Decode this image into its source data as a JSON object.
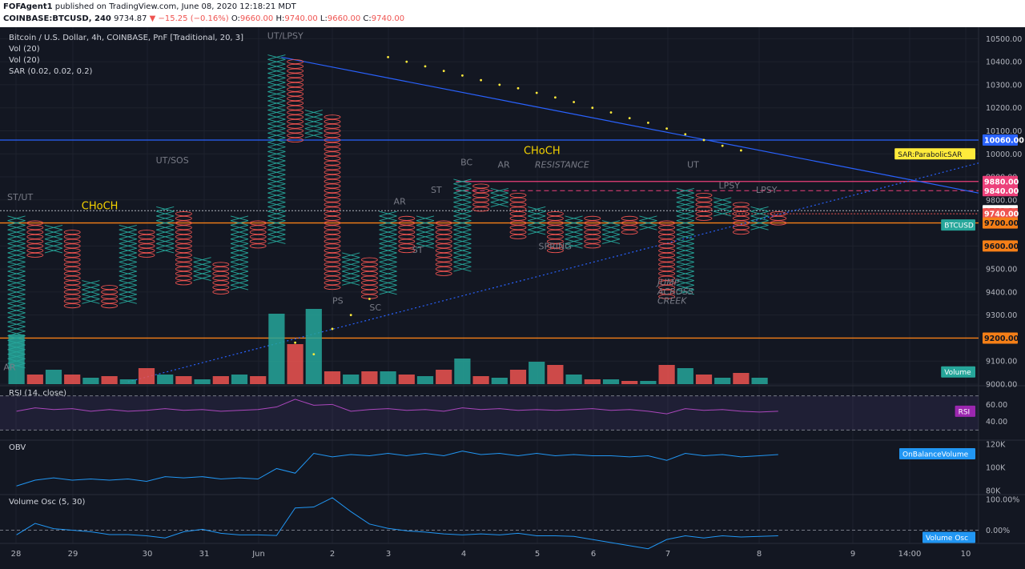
{
  "header": {
    "author": "FOFAgent1",
    "published": "published on TradingView.com, June 08, 2020 12:18:21 MDT",
    "symbol": "COINBASE:BTCUSD, 240",
    "last": "9734.87",
    "change": "−15.25 (−0.16%)",
    "o_label": "O:",
    "o": "9660.00",
    "h_label": "H:",
    "h": "9740.00",
    "l_label": "L:",
    "l": "9660.00",
    "c_label": "C:",
    "c": "9740.00"
  },
  "legend": {
    "title": "Bitcoin / U.S. Dollar, 4h, COINBASE, PnF [Traditional, 20, 3]",
    "vol1": "Vol (20)",
    "vol2": "Vol (20)",
    "sar": "SAR (0.02, 0.02, 0.2)"
  },
  "colors": {
    "background": "#131722",
    "x_box": "#26a69a",
    "o_box": "#ef5350",
    "trend_line": "#2962ff",
    "support": "#f57f17",
    "resistance": "#ec407a",
    "sar_dots": "#ffeb3b",
    "rsi": "#ab47bc",
    "obv": "#2196f3",
    "annotation": "#f5d300"
  },
  "chart_data": [
    {
      "type": "pnf",
      "title": "Bitcoin / U.S. Dollar, 4h, COINBASE, PnF [Traditional, 20, 3]",
      "box_size": 20,
      "reversal": 3,
      "ylim": [
        9000,
        10550
      ],
      "y_ticks": [
        "9000.00",
        "9100.00",
        "9200.00",
        "9300.00",
        "9400.00",
        "9500.00",
        "9600.00",
        "9700.00",
        "9800.00",
        "9900.00",
        "10000.00",
        "10100.00",
        "10200.00",
        "10300.00",
        "10400.00",
        "10500.00"
      ],
      "x_ticks": [
        "28",
        "29",
        "30",
        "31",
        "Jun",
        "2",
        "3",
        "4",
        "5",
        "6",
        "7",
        "8",
        "9",
        "14:00",
        "10"
      ],
      "columns": [
        {
          "t": "X",
          "lo": 9080,
          "hi": 9720
        },
        {
          "t": "O",
          "lo": 9560,
          "hi": 9700
        },
        {
          "t": "X",
          "lo": 9580,
          "hi": 9680
        },
        {
          "t": "O",
          "lo": 9340,
          "hi": 9660
        },
        {
          "t": "X",
          "lo": 9360,
          "hi": 9440
        },
        {
          "t": "O",
          "lo": 9340,
          "hi": 9420
        },
        {
          "t": "X",
          "lo": 9360,
          "hi": 9680
        },
        {
          "t": "O",
          "lo": 9560,
          "hi": 9660
        },
        {
          "t": "X",
          "lo": 9580,
          "hi": 9760
        },
        {
          "t": "O",
          "lo": 9440,
          "hi": 9740
        },
        {
          "t": "X",
          "lo": 9460,
          "hi": 9540
        },
        {
          "t": "O",
          "lo": 9400,
          "hi": 9520
        },
        {
          "t": "X",
          "lo": 9420,
          "hi": 9720
        },
        {
          "t": "O",
          "lo": 9600,
          "hi": 9700
        },
        {
          "t": "X",
          "lo": 9620,
          "hi": 10420
        },
        {
          "t": "O",
          "lo": 10060,
          "hi": 10400
        },
        {
          "t": "X",
          "lo": 10080,
          "hi": 10180
        },
        {
          "t": "O",
          "lo": 9420,
          "hi": 10160
        },
        {
          "t": "X",
          "lo": 9440,
          "hi": 9560
        },
        {
          "t": "O",
          "lo": 9380,
          "hi": 9540
        },
        {
          "t": "X",
          "lo": 9400,
          "hi": 9740
        },
        {
          "t": "O",
          "lo": 9580,
          "hi": 9720
        },
        {
          "t": "X",
          "lo": 9600,
          "hi": 9720
        },
        {
          "t": "O",
          "lo": 9480,
          "hi": 9700
        },
        {
          "t": "X",
          "lo": 9500,
          "hi": 9880
        },
        {
          "t": "O",
          "lo": 9760,
          "hi": 9860
        },
        {
          "t": "X",
          "lo": 9780,
          "hi": 9840
        },
        {
          "t": "O",
          "lo": 9640,
          "hi": 9820
        },
        {
          "t": "X",
          "lo": 9660,
          "hi": 9760
        },
        {
          "t": "O",
          "lo": 9580,
          "hi": 9740
        },
        {
          "t": "X",
          "lo": 9600,
          "hi": 9720
        },
        {
          "t": "O",
          "lo": 9600,
          "hi": 9720
        },
        {
          "t": "X",
          "lo": 9620,
          "hi": 9700
        },
        {
          "t": "O",
          "lo": 9660,
          "hi": 9720
        },
        {
          "t": "X",
          "lo": 9680,
          "hi": 9720
        },
        {
          "t": "O",
          "lo": 9380,
          "hi": 9700
        },
        {
          "t": "X",
          "lo": 9400,
          "hi": 9840
        },
        {
          "t": "O",
          "lo": 9720,
          "hi": 9820
        },
        {
          "t": "X",
          "lo": 9740,
          "hi": 9800
        },
        {
          "t": "O",
          "lo": 9660,
          "hi": 9780
        },
        {
          "t": "X",
          "lo": 9680,
          "hi": 9760
        },
        {
          "t": "O",
          "lo": 9700,
          "hi": 9740
        }
      ],
      "levels": [
        {
          "value": 10060,
          "label": "10060.00",
          "color": "#2962ff",
          "style": "solid"
        },
        {
          "value": 9880,
          "label": "9880.00",
          "color": "#ec407a",
          "style": "solid"
        },
        {
          "value": 9840,
          "label": "9840.00",
          "color": "#ec407a",
          "style": "dashed"
        },
        {
          "value": 9753.26,
          "label": "9753.26",
          "color": "#b2b5be",
          "style": "dotted"
        },
        {
          "value": 9740,
          "label": "9740.00",
          "color": "#ef5350",
          "style": "dotted"
        },
        {
          "value": 9700,
          "label": "9700.00",
          "color": "#f57f17",
          "style": "solid"
        },
        {
          "value": 9600,
          "label": "9600.00",
          "color": "#f57f17",
          "style": "none"
        },
        {
          "value": 9200,
          "label": "9200.00",
          "color": "#f57f17",
          "style": "solid"
        }
      ],
      "price_tags": [
        {
          "value": 9740,
          "label": "BTCUSD",
          "color": "#26a69a"
        },
        {
          "value": 10000,
          "label": "SAR:ParabolicSAR",
          "color": "#ffeb3b"
        },
        {
          "value": 9053,
          "label": "Volume",
          "color": "#26a69a"
        }
      ],
      "sar": [
        {
          "col": 20.5,
          "value": 10420
        },
        {
          "col": 21.5,
          "value": 10400
        },
        {
          "col": 22.5,
          "value": 10380
        },
        {
          "col": 23.5,
          "value": 10360
        },
        {
          "col": 24.5,
          "value": 10340
        },
        {
          "col": 25.5,
          "value": 10320
        },
        {
          "col": 26.5,
          "value": 10300
        },
        {
          "col": 27.5,
          "value": 10285
        },
        {
          "col": 28.5,
          "value": 10265
        },
        {
          "col": 29.5,
          "value": 10245
        },
        {
          "col": 30.5,
          "value": 10225
        },
        {
          "col": 31.5,
          "value": 10200
        },
        {
          "col": 32.5,
          "value": 10180
        },
        {
          "col": 33.5,
          "value": 10155
        },
        {
          "col": 34.5,
          "value": 10135
        },
        {
          "col": 35.5,
          "value": 10110
        },
        {
          "col": 36.5,
          "value": 10085
        },
        {
          "col": 37.5,
          "value": 10060
        },
        {
          "col": 38.5,
          "value": 10035
        },
        {
          "col": 39.5,
          "value": 10015
        },
        {
          "col": 17.5,
          "value": 9240
        },
        {
          "col": 18.5,
          "value": 9300
        },
        {
          "col": 19.5,
          "value": 9370
        },
        {
          "col": 15.5,
          "value": 9180
        },
        {
          "col": 16.5,
          "value": 9130
        }
      ],
      "volume": [
        0.31,
        0.06,
        0.09,
        0.06,
        0.04,
        0.05,
        0.03,
        0.1,
        0.06,
        0.05,
        0.03,
        0.05,
        0.06,
        0.05,
        0.44,
        0.25,
        0.47,
        0.08,
        0.06,
        0.08,
        0.08,
        0.06,
        0.05,
        0.09,
        0.16,
        0.05,
        0.04,
        0.09,
        0.14,
        0.12,
        0.06,
        0.03,
        0.03,
        0.02,
        0.02,
        0.12,
        0.1,
        0.06,
        0.04,
        0.07,
        0.04,
        0.0
      ],
      "annotations": [
        {
          "text": "ST/UT",
          "col": 0,
          "value": 9800,
          "color": "#787b86"
        },
        {
          "text": "CHoCH",
          "col": 4,
          "value": 9760,
          "color": "#f5d300"
        },
        {
          "text": "UT/SOS",
          "col": 8,
          "value": 9960,
          "color": "#787b86"
        },
        {
          "text": "UT/LPSY",
          "col": 14,
          "value": 10500,
          "color": "#787b86"
        },
        {
          "text": "PS",
          "col": 17.5,
          "value": 9350,
          "color": "#787b86"
        },
        {
          "text": "SC",
          "col": 19.5,
          "value": 9320,
          "color": "#787b86"
        },
        {
          "text": "AR",
          "col": 20.8,
          "value": 9780,
          "color": "#787b86"
        },
        {
          "text": "ST",
          "col": 22.8,
          "value": 9830,
          "color": "#787b86"
        },
        {
          "text": "ST",
          "col": 21.8,
          "value": 9570,
          "color": "#787b86"
        },
        {
          "text": "BC",
          "col": 24.4,
          "value": 9950,
          "color": "#787b86"
        },
        {
          "text": "CHoCH",
          "col": 27.8,
          "value": 10000,
          "color": "#f5d300"
        },
        {
          "text": "AR",
          "col": 26.4,
          "value": 9940,
          "color": "#787b86"
        },
        {
          "text": "RESISTANCE",
          "col": 28.4,
          "value": 9940,
          "color": "#787b86"
        },
        {
          "text": "SPRING",
          "col": 28.6,
          "value": 9585,
          "color": "#787b86"
        },
        {
          "text": "JUMP",
          "col": 35,
          "value": 9430,
          "color": "#787b86"
        },
        {
          "text": "ACROSS",
          "col": 35,
          "value": 9390,
          "color": "#787b86"
        },
        {
          "text": "CREEK",
          "col": 35,
          "value": 9350,
          "color": "#787b86"
        },
        {
          "text": "UT",
          "col": 36.6,
          "value": 9940,
          "color": "#787b86"
        },
        {
          "text": "LPSY",
          "col": 38.3,
          "value": 9850,
          "color": "#787b86"
        },
        {
          "text": "LPSY",
          "col": 40.3,
          "value": 9830,
          "color": "#787b86"
        },
        {
          "text": "AR",
          "col": -0.2,
          "value": 9060,
          "color": "#787b86"
        }
      ]
    },
    {
      "type": "line",
      "title": "RSI (14, close)",
      "ylim": [
        20,
        80
      ],
      "y_ticks": [
        "60.00",
        "40.00"
      ],
      "bands": [
        70,
        30
      ],
      "values": [
        52,
        56,
        54,
        55,
        52,
        54,
        52,
        53,
        55,
        53,
        54,
        52,
        53,
        54,
        57,
        66,
        59,
        60,
        52,
        54,
        55,
        53,
        54,
        52,
        56,
        54,
        55,
        53,
        54,
        53,
        54,
        55,
        53,
        54,
        52,
        49,
        55,
        53,
        54,
        52,
        51,
        52
      ],
      "tag": "RSI"
    },
    {
      "type": "line",
      "title": "OBV",
      "ylim": [
        78,
        122
      ],
      "y_ticks": [
        "120K",
        "100K",
        "80K"
      ],
      "values": [
        84,
        89,
        91,
        89,
        90,
        89,
        90,
        88,
        92,
        91,
        92,
        90,
        91,
        90,
        99,
        95,
        112,
        109,
        111,
        110,
        112,
        110,
        112,
        110,
        114,
        111,
        112,
        110,
        112,
        110,
        111,
        110,
        110,
        109,
        110,
        106,
        112,
        110,
        111,
        109,
        110,
        111
      ],
      "tag": "OnBalanceVolume"
    },
    {
      "type": "line",
      "title": "Volume Osc (5, 30)",
      "ylim": [
        -40,
        110
      ],
      "y_ticks": [
        "100.00%",
        "0.00%"
      ],
      "values": [
        -15,
        22,
        5,
        0,
        -5,
        -14,
        -14,
        -18,
        -25,
        -5,
        3,
        -10,
        -15,
        -15,
        -17,
        72,
        75,
        105,
        60,
        20,
        6,
        -2,
        -6,
        -12,
        -15,
        -12,
        -15,
        -10,
        -18,
        -18,
        -20,
        -30,
        -40,
        -50,
        -60,
        -30,
        -18,
        -25,
        -18,
        -22,
        -20,
        -18
      ],
      "tag": "Volume Osc"
    }
  ]
}
